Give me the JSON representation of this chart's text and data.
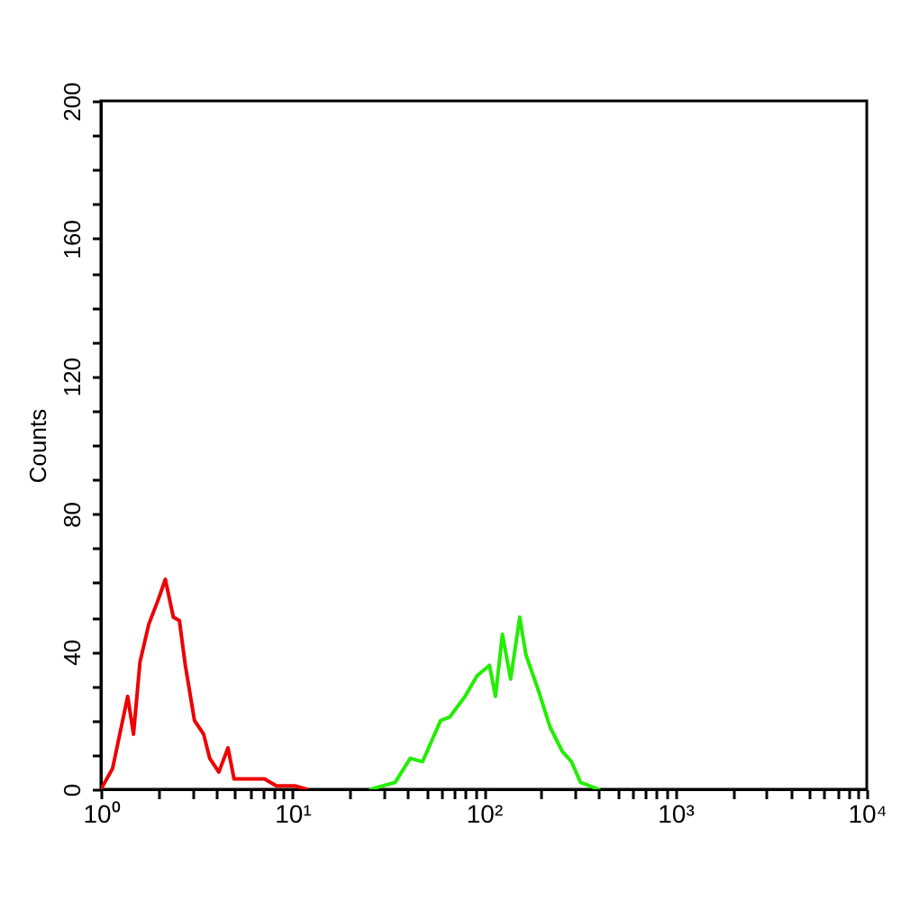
{
  "chart_data": {
    "type": "line",
    "ylabel": "Counts",
    "log": "x",
    "marker": "none",
    "line_style": "solid",
    "xlim": [
      1,
      10000
    ],
    "ylim": [
      0,
      200
    ],
    "xticks": [
      {
        "value": 1,
        "label": "10⁰"
      },
      {
        "value": 2,
        "label": null
      },
      {
        "value": 3,
        "label": null
      },
      {
        "value": 4,
        "label": null
      },
      {
        "value": 5,
        "label": null
      },
      {
        "value": 6,
        "label": null
      },
      {
        "value": 7,
        "label": null
      },
      {
        "value": 8,
        "label": null
      },
      {
        "value": 9,
        "label": null
      },
      {
        "value": 10,
        "label": "10¹"
      },
      {
        "value": 20,
        "label": null
      },
      {
        "value": 30,
        "label": null
      },
      {
        "value": 40,
        "label": null
      },
      {
        "value": 50,
        "label": null
      },
      {
        "value": 60,
        "label": null
      },
      {
        "value": 70,
        "label": null
      },
      {
        "value": 80,
        "label": null
      },
      {
        "value": 90,
        "label": null
      },
      {
        "value": 100,
        "label": "10²"
      },
      {
        "value": 200,
        "label": null
      },
      {
        "value": 300,
        "label": null
      },
      {
        "value": 400,
        "label": null
      },
      {
        "value": 500,
        "label": null
      },
      {
        "value": 600,
        "label": null
      },
      {
        "value": 700,
        "label": null
      },
      {
        "value": 800,
        "label": null
      },
      {
        "value": 900,
        "label": null
      },
      {
        "value": 1000,
        "label": "10³"
      },
      {
        "value": 2000,
        "label": null
      },
      {
        "value": 3000,
        "label": null
      },
      {
        "value": 4000,
        "label": null
      },
      {
        "value": 5000,
        "label": null
      },
      {
        "value": 6000,
        "label": null
      },
      {
        "value": 7000,
        "label": null
      },
      {
        "value": 8000,
        "label": null
      },
      {
        "value": 9000,
        "label": null
      },
      {
        "value": 10000,
        "label": "10⁴"
      }
    ],
    "yticks": [
      0,
      {
        "value": 10,
        "label": null
      },
      {
        "value": 20,
        "label": null
      },
      {
        "value": 30,
        "label": null
      },
      40,
      {
        "value": 50,
        "label": null
      },
      {
        "value": 60,
        "label": null
      },
      {
        "value": 70,
        "label": null
      },
      80,
      {
        "value": 90,
        "label": null
      },
      {
        "value": 100,
        "label": null
      },
      {
        "value": 110,
        "label": null
      },
      120,
      {
        "value": 130,
        "label": null
      },
      {
        "value": 140,
        "label": null
      },
      {
        "value": 150,
        "label": null
      },
      160,
      {
        "value": 170,
        "label": null
      },
      {
        "value": 180,
        "label": null
      },
      {
        "value": 190,
        "label": null
      },
      200
    ],
    "series": [
      {
        "color": "#ee0000",
        "x": [
          1.0,
          1.15,
          1.38,
          1.48,
          1.6,
          1.78,
          1.99,
          2.17,
          2.39,
          2.57,
          2.76,
          3.08,
          3.44,
          3.7,
          4.13,
          4.61,
          4.96,
          5.74,
          7.15,
          8.26,
          10.3,
          11.9
        ],
        "values": [
          0,
          6,
          27,
          16,
          37,
          48,
          55,
          61,
          50,
          49,
          36,
          20,
          16,
          9,
          5,
          12,
          3,
          3,
          3,
          1,
          1,
          0
        ]
      },
      {
        "color": "#22ee00",
        "x": [
          25.7,
          34.4,
          41.3,
          47.8,
          59.5,
          66.4,
          79.8,
          92.2,
          107,
          115,
          125,
          138,
          154,
          166,
          192,
          222,
          257,
          287,
          320,
          398
        ],
        "values": [
          0,
          2,
          9,
          8,
          20,
          21,
          27,
          33,
          36,
          27,
          45,
          32,
          50,
          39,
          29,
          18,
          11,
          8,
          2,
          0
        ]
      }
    ]
  }
}
